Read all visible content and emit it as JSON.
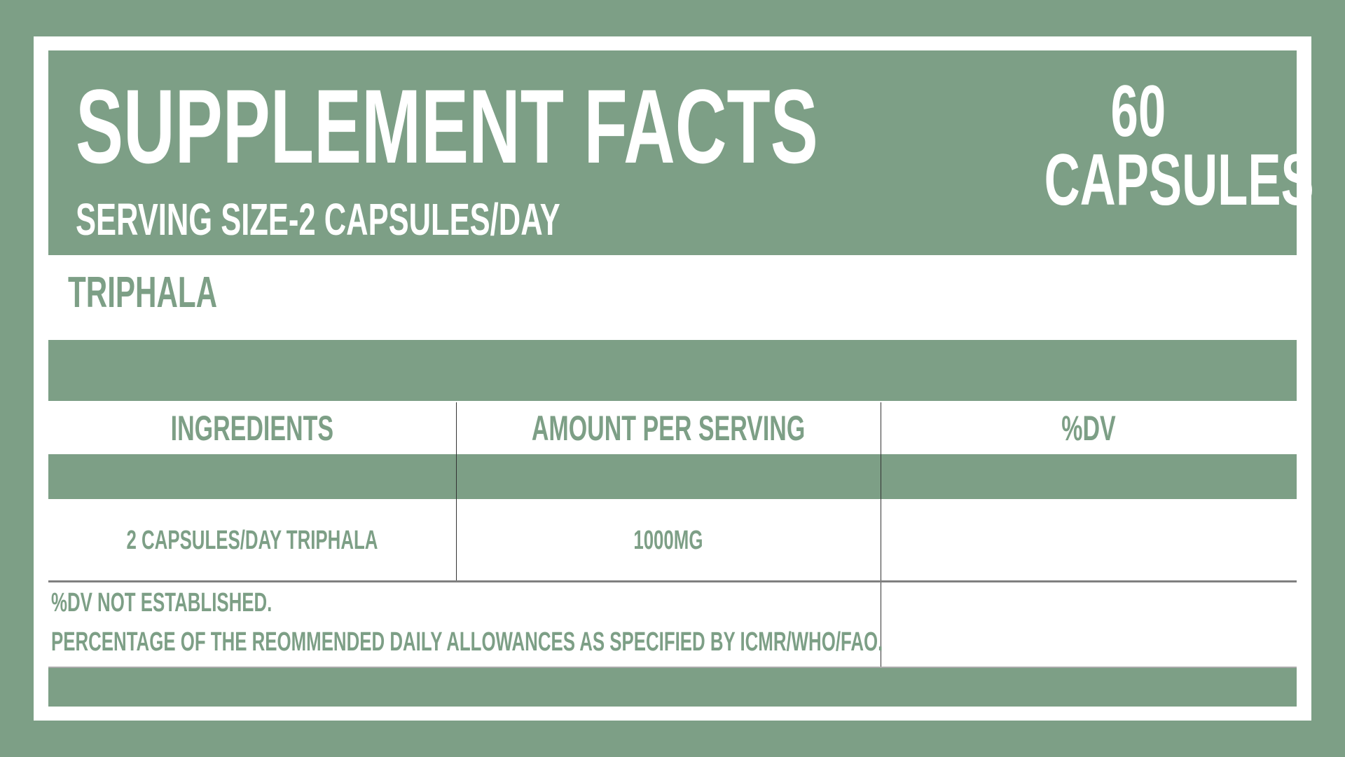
{
  "header": {
    "title": "SUPPLEMENT FACTS",
    "serving_size": "SERVING SIZE-2 CAPSULES/DAY",
    "count_number": "60",
    "count_unit": "CAPSULES"
  },
  "product_name": "TRIPHALA",
  "table": {
    "columns": [
      "INGREDIENTS",
      "AMOUNT PER SERVING",
      "%DV"
    ],
    "rows": [
      {
        "ingredient": "2 CAPSULES/DAY TRIPHALA",
        "amount": "1000MG",
        "dv": ""
      }
    ]
  },
  "footnotes": [
    "%DV NOT ESTABLISHED.",
    "PERCENTAGE OF THE REOMMENDED DAILY ALLOWANCES AS SPECIFIED BY ICMR/WHO/FAO."
  ],
  "colors": {
    "brand": "#7d9f86",
    "background": "#ffffff"
  }
}
